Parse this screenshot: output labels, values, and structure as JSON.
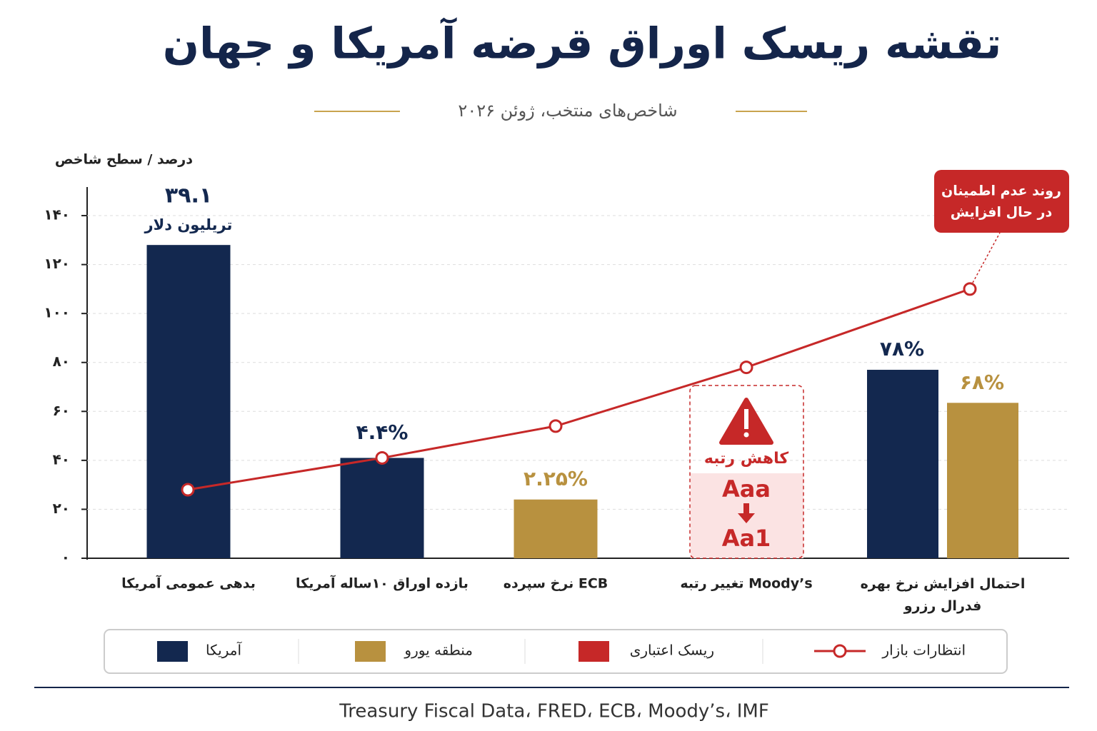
{
  "chart_data": {
    "type": "bar",
    "title": "تقشه ریسک اوراق قرضه آمریکا و جهان",
    "subtitle": "شاخص‌های منتخب، ژوئن ۲۰۲۶",
    "y_label": "درصد / سطح شاخص",
    "categories": [
      "بدهی عمومی آمریکا",
      "بازده اوراق ۱۰ساله آمریکا",
      "نرخ سپرده ECB",
      "تغییر رتبه Moody’s",
      "احتمال افزایش نرخ بهره\nفدرال رزرو"
    ],
    "series": [
      {
        "name": "آمریکا",
        "color": "#13284f",
        "values": [
          128,
          41,
          null,
          null,
          77
        ]
      },
      {
        "name": "منطقه یورو",
        "color": "#b8913f",
        "values": [
          null,
          null,
          24,
          null,
          63.5
        ]
      },
      {
        "name": "انتظارات بازار",
        "type": "line",
        "color": "#c62828",
        "values": [
          28,
          41,
          54,
          78,
          110
        ]
      }
    ],
    "annotations": [
      "۳۹.۱",
      "تریلیون دلار",
      "۴.۴%",
      "۲.۲۵%",
      "۷۸%",
      "۶۸%"
    ],
    "credit_risk": {
      "name": "ریسک اعتباری",
      "color": "#c62828",
      "label": "کاهش رتبه",
      "from": "Aaa",
      "to": "Aa1"
    },
    "callout": [
      "روند عدم اطمینان",
      "در حال افزایش"
    ],
    "ylim": [
      0,
      152
    ],
    "yticks": [
      {
        "value": 0,
        "label": "۰"
      },
      {
        "value": 20,
        "label": "۲۰"
      },
      {
        "value": 40,
        "label": "۴۰"
      },
      {
        "value": 60,
        "label": "۶۰"
      },
      {
        "value": 80,
        "label": "۸۰"
      },
      {
        "value": 100,
        "label": "۱۰۰"
      },
      {
        "value": 120,
        "label": "۱۲۰"
      },
      {
        "value": 140,
        "label": "۱۴۰"
      }
    ],
    "grid": true,
    "source": "Treasury Fiscal Data، FRED، ECB، Moody’s، IMF"
  }
}
